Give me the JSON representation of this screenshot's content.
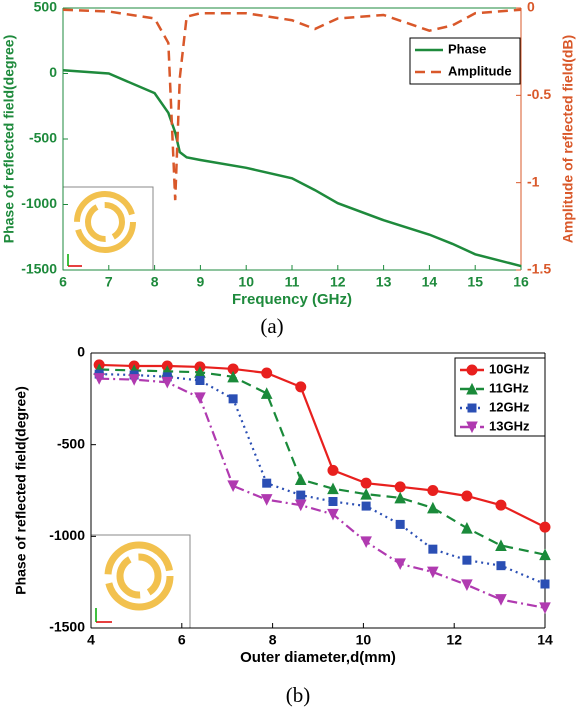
{
  "chart_data": [
    {
      "type": "line",
      "caption": "(a)",
      "xlabel": "Frequency (GHz)",
      "ylabel": "Phase of reflected field(degree)",
      "y2label": "Amplitude of reflected field(dB)",
      "x": [
        6,
        7,
        8,
        8.3,
        8.45,
        8.55,
        8.7,
        9,
        10,
        11,
        11.5,
        12,
        13,
        14,
        14.5,
        15,
        16
      ],
      "series": [
        {
          "name": "Phase",
          "color": "#1e8a3c",
          "dash": "solid",
          "values": [
            25,
            0,
            -150,
            -300,
            -450,
            -600,
            -640,
            -660,
            -720,
            -800,
            -890,
            -990,
            -1120,
            -1230,
            -1300,
            -1380,
            -1470
          ]
        },
        {
          "name": "Amplitude",
          "color": "#d9582a",
          "dash": "dashed",
          "axis": "y2",
          "values": [
            -0.01,
            -0.02,
            -0.06,
            -0.2,
            -1.1,
            -0.4,
            -0.05,
            -0.03,
            -0.03,
            -0.07,
            -0.12,
            -0.06,
            -0.04,
            -0.13,
            -0.1,
            -0.03,
            -0.01
          ]
        }
      ],
      "xlim": [
        6,
        16
      ],
      "xticks": [
        6,
        7,
        8,
        9,
        10,
        11,
        12,
        13,
        14,
        15,
        16
      ],
      "ylim": [
        -1500,
        500
      ],
      "yticks": [
        -1500,
        -1000,
        -500,
        0,
        500
      ],
      "y2lim": [
        -1.5,
        0
      ],
      "y2ticks": [
        -1.5,
        -1,
        -0.5,
        0
      ],
      "axis_color": "#1e8a3c",
      "y2_color": "#d9582a",
      "legend": "upper right",
      "grid": false
    },
    {
      "type": "line",
      "caption": "(b)",
      "xlabel": "Outer diameter,d(mm)",
      "ylabel": "Phase of reflected field(degree)",
      "x": [
        4.18,
        4.95,
        5.68,
        6.4,
        7.13,
        7.87,
        8.62,
        9.33,
        10.06,
        10.81,
        11.53,
        12.28,
        13.03,
        14
      ],
      "series": [
        {
          "name": "10GHz",
          "color": "#e8201e",
          "dash": "solid",
          "marker": "circle",
          "values": [
            -65,
            -71,
            -71,
            -76,
            -87,
            -109,
            -185,
            -640,
            -710,
            -730,
            -750,
            -780,
            -830,
            -950
          ]
        },
        {
          "name": "11GHz",
          "color": "#1a8a3a",
          "dash": "dashed",
          "marker": "triangle-up",
          "values": [
            -90,
            -95,
            -100,
            -105,
            -130,
            -220,
            -690,
            -740,
            -770,
            -790,
            -845,
            -955,
            -1050,
            -1100
          ]
        },
        {
          "name": "12GHz",
          "color": "#2b4fb4",
          "dash": "dotted",
          "marker": "square",
          "values": [
            -115,
            -120,
            -130,
            -150,
            -250,
            -710,
            -775,
            -810,
            -835,
            -935,
            -1070,
            -1130,
            -1160,
            -1260
          ]
        },
        {
          "name": "13GHz",
          "color": "#b03ab0",
          "dash": "dashdot",
          "marker": "triangle-down",
          "values": [
            -140,
            -145,
            -160,
            -245,
            -725,
            -800,
            -830,
            -880,
            -1030,
            -1150,
            -1195,
            -1265,
            -1345,
            -1390
          ]
        }
      ],
      "xlim": [
        4,
        14
      ],
      "xticks": [
        4,
        6,
        8,
        10,
        12,
        14
      ],
      "ylim": [
        -1500,
        0
      ],
      "yticks": [
        -1500,
        -1000,
        -500,
        0
      ],
      "axis_color": "#000000",
      "legend": "upper right",
      "grid": false
    }
  ]
}
